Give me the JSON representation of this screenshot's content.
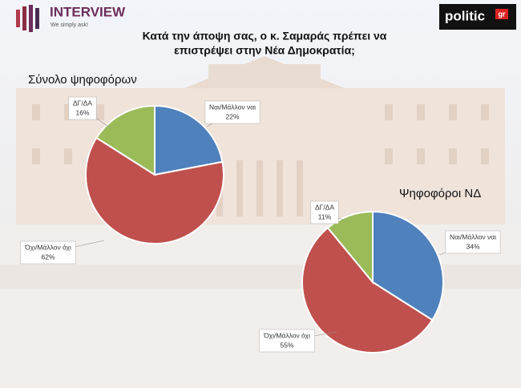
{
  "header": {
    "brand": "INTERVIEW",
    "tagline": "We simply ask!",
    "logo": "politic",
    "logo_suffix": "gr"
  },
  "title_lines": [
    "Κατά την άποψη σας, ο κ. Σαμαράς πρέπει να",
    "επιστρέψει στην Νέα Δημοκρατία;"
  ],
  "chart_data": [
    {
      "type": "pie",
      "title": "Σύνολο ψηφοφόρων",
      "categories": [
        "Ναι/Μάλλον ναι",
        "Όχι/Μάλλον όχι",
        "ΔΓ/ΔΑ"
      ],
      "values": [
        22,
        62,
        16
      ],
      "value_labels": [
        "22%",
        "62%",
        "16%"
      ],
      "colors": [
        "#4f81bd",
        "#c0504d",
        "#9bbb59"
      ]
    },
    {
      "type": "pie",
      "title": "Ψηφοφόροι ΝΔ",
      "categories": [
        "Ναι/Μάλλον ναι",
        "Όχι/Μάλλον όχι",
        "ΔΓ/ΔΑ"
      ],
      "values": [
        34,
        55,
        11
      ],
      "value_labels": [
        "34%",
        "55%",
        "11%"
      ],
      "colors": [
        "#4f81bd",
        "#c0504d",
        "#9bbb59"
      ]
    }
  ]
}
